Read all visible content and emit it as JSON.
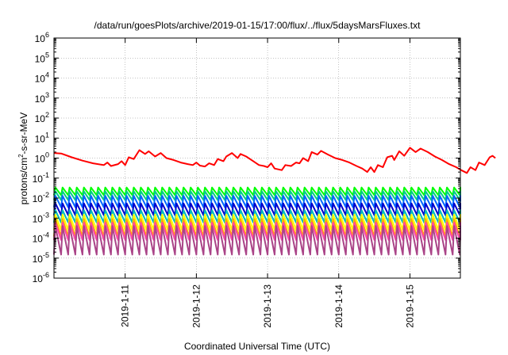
{
  "chart_data": {
    "type": "line",
    "title": "/data/run/goesPlots/archive/2019-01-15/17:00/flux/../flux/5daysMarsFluxes.txt",
    "xlabel": "Coordinated Universal Time (UTC)",
    "ylabel": "protons/cm2-s-sr-MeV",
    "ylabel_parts": {
      "before": "protons/cm",
      "sup": "2",
      "after": "-s-sr-MeV"
    },
    "yscale": "log",
    "ylim_exponents": [
      -6,
      6
    ],
    "ytick_base": "10",
    "yticks": [
      -6,
      -5,
      -4,
      -3,
      -2,
      -1,
      0,
      1,
      2,
      3,
      4,
      5,
      6
    ],
    "x_range_days": [
      "2019-01-10 00:00",
      "2019-01-15 17:00"
    ],
    "xticks": [
      "2019-1-11",
      "2019-1-12",
      "2019-1-13",
      "2019-1-14",
      "2019-1-15"
    ],
    "grid": true,
    "series": [
      {
        "color": "#ff0000",
        "sawtooth": false,
        "points": [
          [
            0.0,
            1.8
          ],
          [
            0.1,
            1.7
          ],
          [
            0.25,
            1.1
          ],
          [
            0.4,
            0.75
          ],
          [
            0.55,
            0.55
          ],
          [
            0.7,
            0.45
          ],
          [
            0.75,
            0.6
          ],
          [
            0.8,
            0.4
          ],
          [
            0.9,
            0.5
          ],
          [
            0.95,
            0.7
          ],
          [
            1.0,
            0.45
          ],
          [
            1.05,
            1.1
          ],
          [
            1.12,
            0.9
          ],
          [
            1.2,
            2.5
          ],
          [
            1.28,
            1.6
          ],
          [
            1.33,
            2.2
          ],
          [
            1.42,
            1.2
          ],
          [
            1.5,
            1.8
          ],
          [
            1.58,
            1.0
          ],
          [
            1.68,
            0.8
          ],
          [
            1.78,
            0.6
          ],
          [
            1.88,
            0.5
          ],
          [
            1.95,
            0.45
          ],
          [
            2.0,
            0.6
          ],
          [
            2.05,
            0.42
          ],
          [
            2.12,
            0.38
          ],
          [
            2.18,
            0.55
          ],
          [
            2.25,
            0.45
          ],
          [
            2.3,
            0.9
          ],
          [
            2.38,
            0.7
          ],
          [
            2.42,
            1.2
          ],
          [
            2.5,
            1.8
          ],
          [
            2.58,
            1.0
          ],
          [
            2.62,
            1.6
          ],
          [
            2.7,
            1.2
          ],
          [
            2.8,
            0.7
          ],
          [
            2.88,
            0.45
          ],
          [
            2.95,
            0.4
          ],
          [
            3.0,
            0.35
          ],
          [
            3.05,
            0.55
          ],
          [
            3.1,
            0.3
          ],
          [
            3.2,
            0.25
          ],
          [
            3.25,
            0.45
          ],
          [
            3.33,
            0.4
          ],
          [
            3.4,
            0.6
          ],
          [
            3.45,
            0.55
          ],
          [
            3.5,
            1.0
          ],
          [
            3.57,
            0.7
          ],
          [
            3.62,
            2.0
          ],
          [
            3.7,
            1.5
          ],
          [
            3.75,
            2.3
          ],
          [
            3.85,
            1.5
          ],
          [
            3.95,
            1.0
          ],
          [
            4.05,
            0.8
          ],
          [
            4.15,
            0.6
          ],
          [
            4.25,
            0.4
          ],
          [
            4.33,
            0.3
          ],
          [
            4.4,
            0.2
          ],
          [
            4.45,
            0.35
          ],
          [
            4.5,
            0.2
          ],
          [
            4.55,
            0.45
          ],
          [
            4.62,
            0.35
          ],
          [
            4.68,
            1.1
          ],
          [
            4.75,
            1.3
          ],
          [
            4.78,
            0.8
          ],
          [
            4.85,
            2.2
          ],
          [
            4.92,
            1.3
          ],
          [
            5.0,
            3.3
          ],
          [
            5.08,
            2.0
          ],
          [
            5.15,
            3.0
          ],
          [
            5.25,
            2.0
          ],
          [
            5.35,
            1.2
          ],
          [
            5.45,
            0.8
          ],
          [
            5.55,
            0.5
          ],
          [
            5.65,
            0.35
          ],
          [
            5.72,
            0.25
          ],
          [
            5.8,
            0.18
          ],
          [
            5.85,
            0.35
          ],
          [
            5.92,
            0.25
          ],
          [
            5.97,
            0.6
          ],
          [
            6.05,
            0.45
          ],
          [
            6.12,
            1.1
          ],
          [
            6.16,
            1.3
          ],
          [
            6.2,
            1.0
          ]
        ]
      },
      {
        "color": "#00ff00",
        "sawtooth": true,
        "peak_level": 0.034,
        "trough_level": 0.014
      },
      {
        "color": "#00cc88",
        "sawtooth": true,
        "peak_level": 0.022,
        "trough_level": 0.008
      },
      {
        "color": "#0066ff",
        "sawtooth": true,
        "peak_level": 0.013,
        "trough_level": 0.0035
      },
      {
        "color": "#0000cc",
        "sawtooth": true,
        "peak_level": 0.0055,
        "trough_level": 0.0014
      },
      {
        "color": "#00bbbb",
        "sawtooth": true,
        "peak_level": 0.0025,
        "trough_level": 0.0006
      },
      {
        "color": "#ffff00",
        "sawtooth": true,
        "peak_level": 0.0015,
        "trough_level": 0.00025
      },
      {
        "color": "#ffaa00",
        "sawtooth": true,
        "peak_level": 0.0009,
        "trough_level": 0.00012
      },
      {
        "color": "#ff44aa",
        "sawtooth": true,
        "peak_level": 0.0006,
        "trough_level": 8e-05
      },
      {
        "color": "#aa4488",
        "sawtooth": true,
        "peak_level": 0.0004,
        "trough_level": 1.5e-05
      }
    ],
    "sawtooth_period_days": 0.1
  }
}
